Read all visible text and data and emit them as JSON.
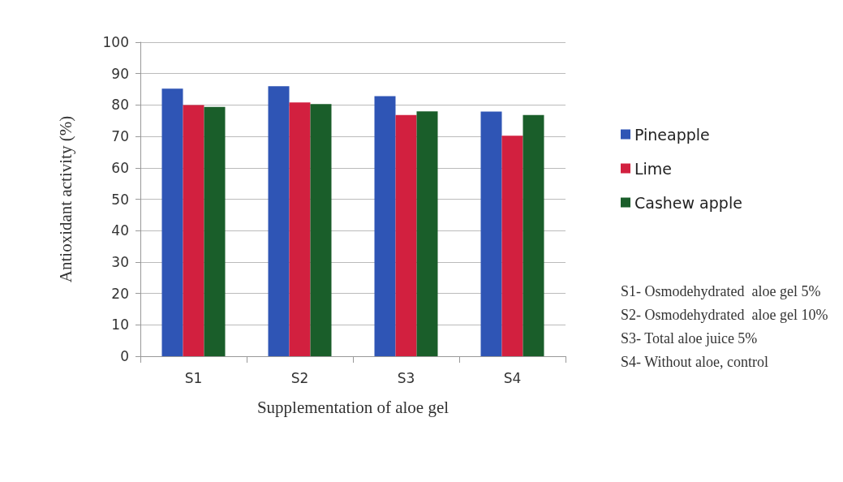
{
  "chart_data": {
    "type": "bar",
    "xlabel": "Supplementation of aloe gel",
    "ylabel": "Antioxidant activity (%)",
    "categories": [
      "S1",
      "S2",
      "S3",
      "S4"
    ],
    "series": [
      {
        "name": "Pineapple",
        "color": "#2f55b5",
        "values": [
          85.2,
          86,
          82.8,
          77.9
        ]
      },
      {
        "name": "Lime",
        "color": "#d2203f",
        "values": [
          80,
          80.8,
          76.8,
          70.2
        ]
      },
      {
        "name": "Cashew apple",
        "color": "#1a5e2a",
        "values": [
          79.4,
          80.3,
          78,
          76.8
        ]
      }
    ],
    "ylim": [
      0,
      100
    ],
    "yticks": [
      0,
      10,
      20,
      30,
      40,
      50,
      60,
      70,
      80,
      90,
      100
    ],
    "grid": "y",
    "legend": "right",
    "annotations": [
      "S1- Osmodehydrated  aloe gel 5%",
      "S2- Osmodehydrated  aloe gel 10%",
      "S3- Total aloe juice 5%",
      "S4- Without aloe, control"
    ]
  }
}
